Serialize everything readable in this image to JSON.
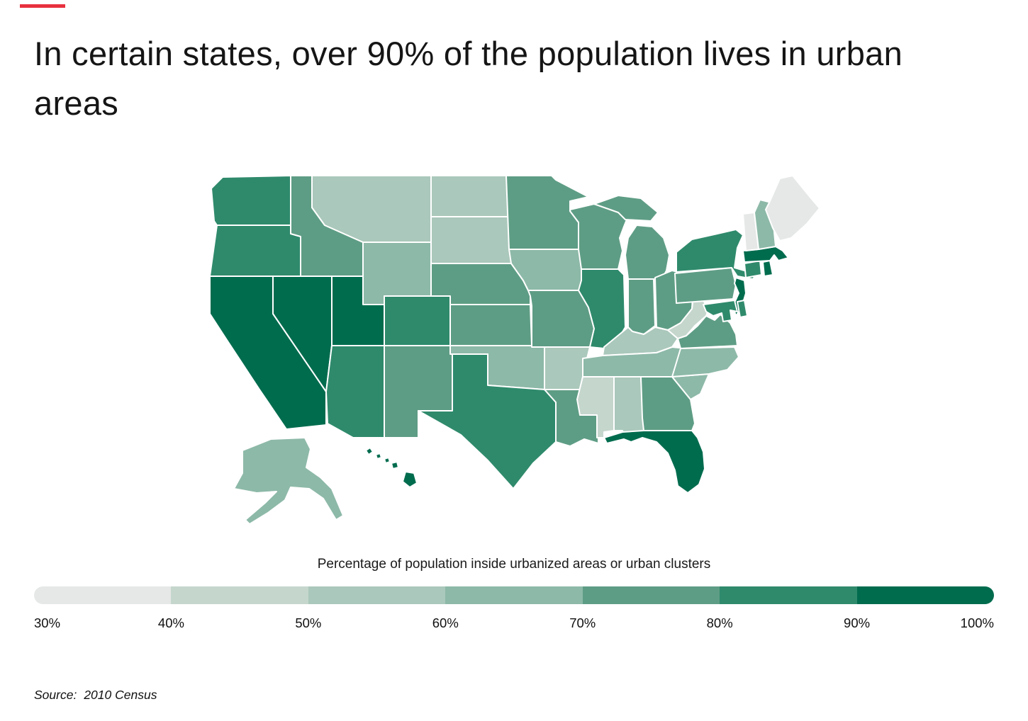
{
  "accent_color": "#e8313e",
  "title": "In certain states, over 90% of the population lives in urban areas",
  "map_caption": "Percentage of population inside urbanized areas or urban clusters",
  "source": {
    "label": "Source:",
    "value": "2010 Census"
  },
  "legend": {
    "tick_labels": [
      "30%",
      "40%",
      "50%",
      "60%",
      "70%",
      "80%",
      "90%",
      "100%"
    ]
  },
  "chart_data": {
    "type": "choropleth",
    "title": "In certain states, over 90% of the population lives in urban areas",
    "legend_title": "Percentage of population inside urbanized areas or urban clusters",
    "source": "2010 Census",
    "unit": "percent urban population",
    "value_range": [
      30,
      100
    ],
    "color_scale": [
      {
        "min": 30,
        "max": 40,
        "color": "#e5e8e6"
      },
      {
        "min": 40,
        "max": 50,
        "color": "#c5d6cd"
      },
      {
        "min": 50,
        "max": 60,
        "color": "#aac8bb"
      },
      {
        "min": 60,
        "max": 70,
        "color": "#8db9a8"
      },
      {
        "min": 70,
        "max": 80,
        "color": "#5e9d85"
      },
      {
        "min": 80,
        "max": 90,
        "color": "#2f8a6c"
      },
      {
        "min": 90,
        "max": 100,
        "color": "#006c4e"
      }
    ],
    "states": [
      {
        "id": "AL",
        "name": "Alabama",
        "value": 59.0
      },
      {
        "id": "AK",
        "name": "Alaska",
        "value": 66.0
      },
      {
        "id": "AZ",
        "name": "Arizona",
        "value": 89.8
      },
      {
        "id": "AR",
        "name": "Arkansas",
        "value": 56.2
      },
      {
        "id": "CA",
        "name": "California",
        "value": 95.0
      },
      {
        "id": "CO",
        "name": "Colorado",
        "value": 86.2
      },
      {
        "id": "CT",
        "name": "Connecticut",
        "value": 88.0
      },
      {
        "id": "DE",
        "name": "Delaware",
        "value": 83.3
      },
      {
        "id": "FL",
        "name": "Florida",
        "value": 91.2
      },
      {
        "id": "GA",
        "name": "Georgia",
        "value": 75.1
      },
      {
        "id": "HI",
        "name": "Hawaii",
        "value": 91.9
      },
      {
        "id": "ID",
        "name": "Idaho",
        "value": 70.6
      },
      {
        "id": "IL",
        "name": "Illinois",
        "value": 88.5
      },
      {
        "id": "IN",
        "name": "Indiana",
        "value": 72.4
      },
      {
        "id": "IA",
        "name": "Iowa",
        "value": 64.0
      },
      {
        "id": "KS",
        "name": "Kansas",
        "value": 74.2
      },
      {
        "id": "KY",
        "name": "Kentucky",
        "value": 58.4
      },
      {
        "id": "LA",
        "name": "Louisiana",
        "value": 73.2
      },
      {
        "id": "ME",
        "name": "Maine",
        "value": 38.7
      },
      {
        "id": "MD",
        "name": "Maryland",
        "value": 87.2
      },
      {
        "id": "MA",
        "name": "Massachusetts",
        "value": 92.0
      },
      {
        "id": "MI",
        "name": "Michigan",
        "value": 74.6
      },
      {
        "id": "MN",
        "name": "Minnesota",
        "value": 73.3
      },
      {
        "id": "MS",
        "name": "Mississippi",
        "value": 49.4
      },
      {
        "id": "MO",
        "name": "Missouri",
        "value": 70.4
      },
      {
        "id": "MT",
        "name": "Montana",
        "value": 55.9
      },
      {
        "id": "NE",
        "name": "Nebraska",
        "value": 73.1
      },
      {
        "id": "NV",
        "name": "Nevada",
        "value": 94.2
      },
      {
        "id": "NH",
        "name": "New Hampshire",
        "value": 60.3
      },
      {
        "id": "NJ",
        "name": "New Jersey",
        "value": 94.7
      },
      {
        "id": "NM",
        "name": "New Mexico",
        "value": 77.4
      },
      {
        "id": "NY",
        "name": "New York",
        "value": 87.9
      },
      {
        "id": "NC",
        "name": "North Carolina",
        "value": 66.1
      },
      {
        "id": "ND",
        "name": "North Dakota",
        "value": 59.9
      },
      {
        "id": "OH",
        "name": "Ohio",
        "value": 77.9
      },
      {
        "id": "OK",
        "name": "Oklahoma",
        "value": 66.2
      },
      {
        "id": "OR",
        "name": "Oregon",
        "value": 81.0
      },
      {
        "id": "PA",
        "name": "Pennsylvania",
        "value": 78.7
      },
      {
        "id": "RI",
        "name": "Rhode Island",
        "value": 90.7
      },
      {
        "id": "SC",
        "name": "South Carolina",
        "value": 66.3
      },
      {
        "id": "SD",
        "name": "South Dakota",
        "value": 56.7
      },
      {
        "id": "TN",
        "name": "Tennessee",
        "value": 66.4
      },
      {
        "id": "TX",
        "name": "Texas",
        "value": 84.7
      },
      {
        "id": "UT",
        "name": "Utah",
        "value": 90.6
      },
      {
        "id": "VT",
        "name": "Vermont",
        "value": 38.9
      },
      {
        "id": "VA",
        "name": "Virginia",
        "value": 75.5
      },
      {
        "id": "WA",
        "name": "Washington",
        "value": 84.0
      },
      {
        "id": "WV",
        "name": "West Virginia",
        "value": 48.7
      },
      {
        "id": "WI",
        "name": "Wisconsin",
        "value": 70.2
      },
      {
        "id": "WY",
        "name": "Wyoming",
        "value": 64.8
      }
    ]
  }
}
